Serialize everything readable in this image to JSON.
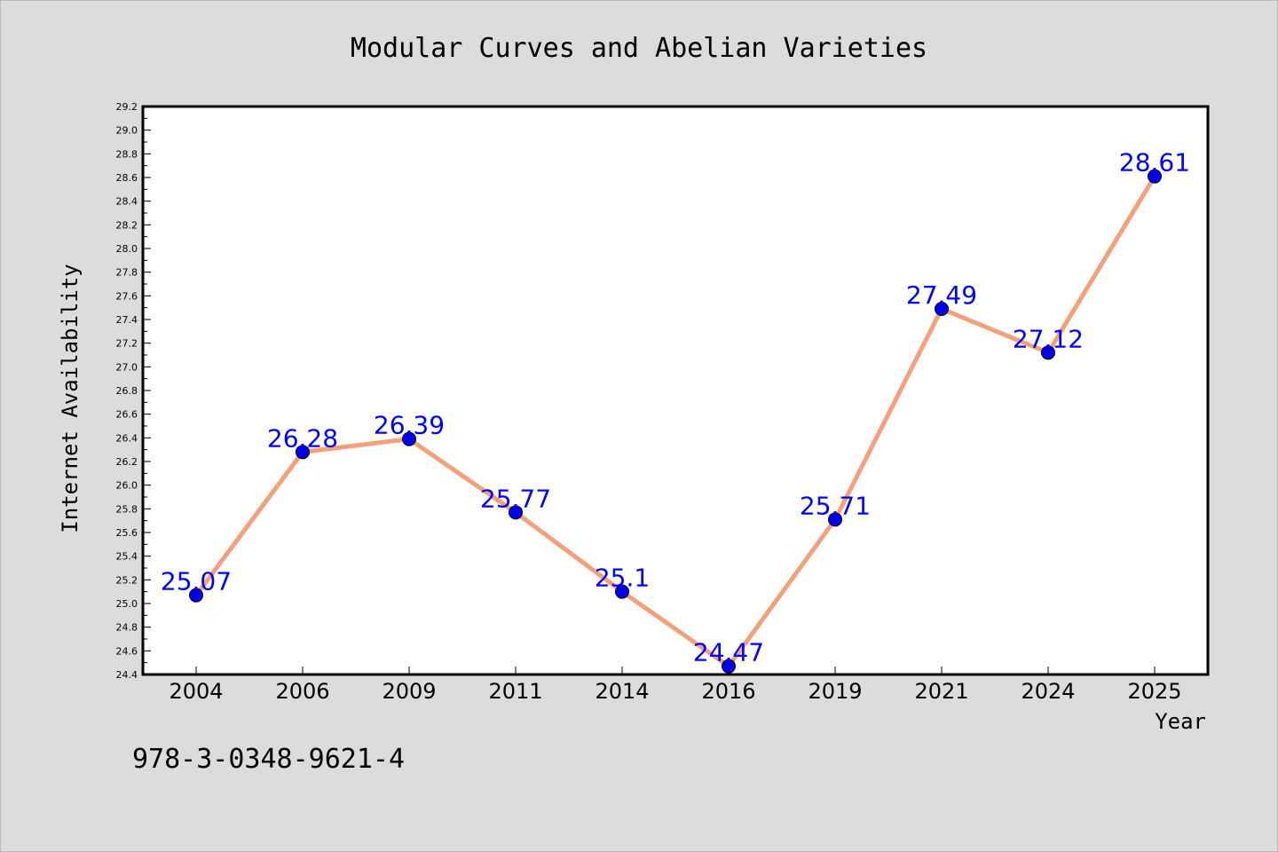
{
  "chart_data": {
    "type": "line",
    "title": "Modular Curves and Abelian Varieties",
    "xlabel": "Year",
    "ylabel": "Internet Availability",
    "categories": [
      "2004",
      "2006",
      "2009",
      "2011",
      "2014",
      "2016",
      "2019",
      "2021",
      "2024",
      "2025"
    ],
    "series": [
      {
        "values": [
          25.07,
          26.28,
          26.39,
          25.77,
          25.1,
          24.47,
          25.71,
          27.49,
          27.12,
          28.61
        ],
        "labels": [
          "25.07",
          "26.28",
          "26.39",
          "25.77",
          "25.1",
          "24.47",
          "25.71",
          "27.49",
          "27.12",
          "28.61"
        ],
        "line_color": "#f4a07a",
        "marker_color": "#0000ee"
      }
    ],
    "ylim": [
      24.4,
      29.2
    ],
    "yticks": [
      "24.4",
      "24.6",
      "24.8",
      "25.0",
      "25.2",
      "25.4",
      "25.6",
      "25.8",
      "26.0",
      "26.2",
      "26.4",
      "26.6",
      "26.8",
      "27.0",
      "27.2",
      "27.4",
      "27.6",
      "27.8",
      "28.0",
      "28.2",
      "28.4",
      "28.6",
      "28.8",
      "29.0",
      "29.2"
    ],
    "grid": false,
    "label_color": "#0000ff",
    "background": "#dcdcdc",
    "plot_background": "#ffffff"
  },
  "annotation": "978-3-0348-9621-4"
}
